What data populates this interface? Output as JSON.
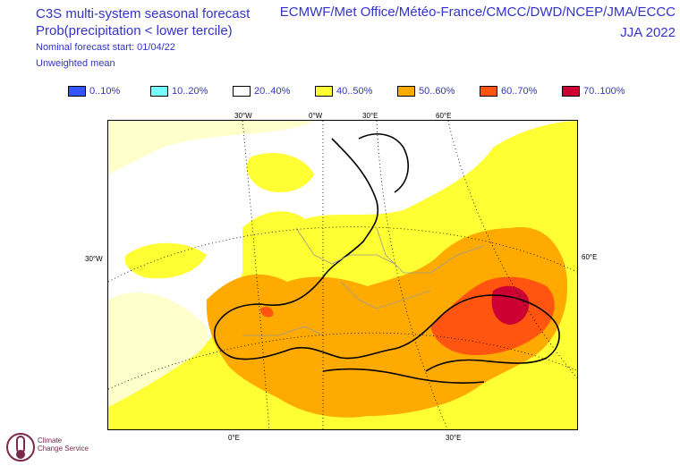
{
  "header": {
    "title": "C3S multi-system seasonal forecast",
    "subtitle": "Prob(precipitation < lower tercile)",
    "forecast_start": "Nominal forecast start: 01/04/22",
    "mean_type": "Unweighted mean",
    "centres": "ECMWF/Met Office/Météo-France/CMCC/DWD/NCEP/JMA/ECCC",
    "season": "JJA 2022"
  },
  "legend": {
    "items": [
      {
        "label": "0..10%",
        "color": "#3355ff"
      },
      {
        "label": "10..20%",
        "color": "#77ffff"
      },
      {
        "label": "20..40%",
        "color": "#ffffff"
      },
      {
        "label": "40..50%",
        "color": "#ffff33"
      },
      {
        "label": "50..60%",
        "color": "#ffaa00"
      },
      {
        "label": "60..70%",
        "color": "#ff5511"
      },
      {
        "label": "70..100%",
        "color": "#cc0033"
      }
    ]
  },
  "map": {
    "top_labels": [
      "30°W",
      "0°W",
      "30°E",
      "60°E"
    ],
    "left_label": "30°W",
    "right_label": "60°E",
    "bottom_labels": [
      "0°E",
      "30°E"
    ]
  },
  "logo": {
    "line1": "Climate",
    "line2": "Change Service"
  },
  "colors": {
    "text": "#3333cc",
    "ocean_light": "#ffff99"
  }
}
